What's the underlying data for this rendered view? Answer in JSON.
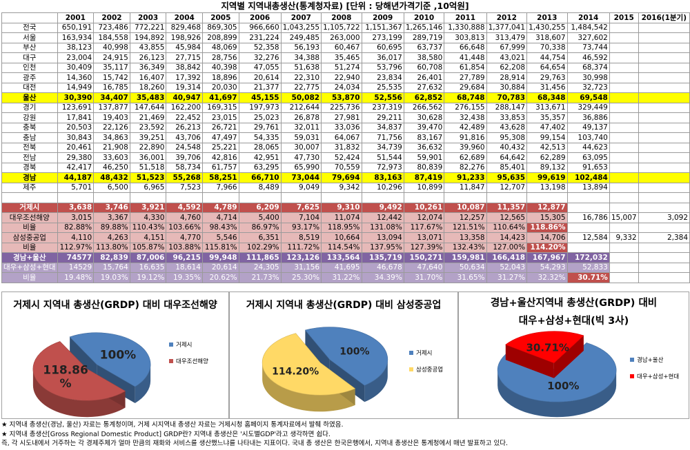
{
  "title": "지역별 지역내총생산(통계청자료) [단위 : 당해년가격기준 ,10억원]",
  "headers": [
    "",
    "2001",
    "2002",
    "2003",
    "2004",
    "2005",
    "2006",
    "2007",
    "2008",
    "2009",
    "2010",
    "2011",
    "2012",
    "2013",
    "2014",
    "2015",
    "2016(1분기)"
  ],
  "rows": [
    {
      "style": "",
      "label": "전국",
      "cells": [
        "650,191",
        "723,486",
        "772,221",
        "829,468",
        "869,305",
        "966,660",
        "1,043,255",
        "1,105,722",
        "1,151,367",
        "1,265,146",
        "1,330,888",
        "1,377,041",
        "1,430,255",
        "1,484,542",
        "",
        ""
      ]
    },
    {
      "style": "",
      "label": "서울",
      "cells": [
        "163,934",
        "184,558",
        "194,892",
        "198,926",
        "208,899",
        "231,224",
        "249,485",
        "263,000",
        "273,199",
        "289,719",
        "303,813",
        "313,479",
        "318,607",
        "327,602",
        "",
        ""
      ]
    },
    {
      "style": "",
      "label": "부산",
      "cells": [
        "38,123",
        "40,998",
        "43,855",
        "45,984",
        "48,069",
        "52,358",
        "56,193",
        "60,467",
        "60,695",
        "63,737",
        "66,648",
        "67,999",
        "70,338",
        "73,744",
        "",
        ""
      ]
    },
    {
      "style": "",
      "label": "대구",
      "cells": [
        "23,004",
        "24,915",
        "26,123",
        "27,715",
        "28,756",
        "32,276",
        "34,388",
        "35,465",
        "36,017",
        "38,580",
        "41,448",
        "43,021",
        "44,754",
        "46,592",
        "",
        ""
      ]
    },
    {
      "style": "",
      "label": "인천",
      "cells": [
        "30,409",
        "35,117",
        "36,349",
        "38,842",
        "40,398",
        "47,055",
        "51,638",
        "51,274",
        "53,796",
        "60,708",
        "61,854",
        "62,208",
        "64,654",
        "68,374",
        "",
        ""
      ]
    },
    {
      "style": "",
      "label": "광주",
      "cells": [
        "14,360",
        "15,742",
        "16,407",
        "17,392",
        "18,896",
        "20,614",
        "22,310",
        "22,940",
        "23,834",
        "26,401",
        "27,789",
        "28,914",
        "29,763",
        "30,998",
        "",
        ""
      ]
    },
    {
      "style": "",
      "label": "대전",
      "cells": [
        "14,949",
        "16,785",
        "18,260",
        "19,314",
        "20,030",
        "21,377",
        "22,775",
        "24,034",
        "25,535",
        "27,632",
        "29,684",
        "30,884",
        "31,456",
        "32,723",
        "",
        ""
      ]
    },
    {
      "style": "hl",
      "label": "울산",
      "cells": [
        "30,390",
        "34,407",
        "35,483",
        "40,947",
        "41,697",
        "45,155",
        "50,082",
        "53,870",
        "52,556",
        "62,852",
        "68,748",
        "70,783",
        "68,348",
        "69,548",
        "",
        ""
      ]
    },
    {
      "style": "",
      "label": "경기",
      "cells": [
        "123,691",
        "137,877",
        "147,644",
        "162,200",
        "169,315",
        "197,973",
        "212,644",
        "225,736",
        "237,319",
        "266,562",
        "276,155",
        "288,147",
        "313,671",
        "329,449",
        "",
        ""
      ]
    },
    {
      "style": "",
      "label": "강원",
      "cells": [
        "17,841",
        "19,403",
        "21,469",
        "22,452",
        "23,015",
        "25,023",
        "26,878",
        "27,981",
        "29,211",
        "30,628",
        "32,438",
        "33,853",
        "35,357",
        "36,886",
        "",
        ""
      ]
    },
    {
      "style": "",
      "label": "충북",
      "cells": [
        "20,503",
        "22,126",
        "23,592",
        "26,213",
        "26,721",
        "29,761",
        "32,011",
        "33,036",
        "34,837",
        "39,470",
        "42,489",
        "43,628",
        "47,402",
        "49,137",
        "",
        ""
      ]
    },
    {
      "style": "",
      "label": "충남",
      "cells": [
        "30,843",
        "34,863",
        "39,251",
        "43,706",
        "47,497",
        "54,335",
        "59,031",
        "64,067",
        "71,756",
        "83,167",
        "91,816",
        "95,308",
        "99,154",
        "103,740",
        "",
        ""
      ]
    },
    {
      "style": "",
      "label": "전북",
      "cells": [
        "20,461",
        "21,908",
        "22,890",
        "24,548",
        "25,221",
        "28,065",
        "30,007",
        "31,832",
        "34,739",
        "36,632",
        "39,960",
        "40,432",
        "42,513",
        "44,623",
        "",
        ""
      ]
    },
    {
      "style": "",
      "label": "전남",
      "cells": [
        "29,380",
        "33,603",
        "36,001",
        "39,706",
        "42,816",
        "42,951",
        "47,730",
        "52,424",
        "51,544",
        "59,901",
        "62,689",
        "64,642",
        "62,289",
        "63,095",
        "",
        ""
      ]
    },
    {
      "style": "",
      "label": "경북",
      "cells": [
        "42,417",
        "46,250",
        "51,518",
        "58,734",
        "61,757",
        "63,295",
        "65,990",
        "70,559",
        "72,973",
        "80,839",
        "82,276",
        "85,401",
        "89,132",
        "91,653",
        "",
        ""
      ]
    },
    {
      "style": "hl",
      "label": "경남",
      "cells": [
        "44,187",
        "48,432",
        "51,523",
        "55,268",
        "58,251",
        "66,710",
        "73,044",
        "79,694",
        "83,163",
        "87,419",
        "91,233",
        "95,635",
        "99,619",
        "102,484",
        "",
        ""
      ]
    },
    {
      "style": "",
      "label": "제주",
      "cells": [
        "5,701",
        "6,500",
        "6,965",
        "7,523",
        "7,966",
        "8,489",
        "9,049",
        "9,342",
        "10,296",
        "10,899",
        "11,847",
        "12,707",
        "13,198",
        "13,894",
        "",
        ""
      ]
    },
    {
      "style": "gap",
      "label": "",
      "cells": [
        "",
        "",
        "",
        "",
        "",
        "",
        "",
        "",
        "",
        "",
        "",
        "",
        "",
        "",
        "",
        ""
      ]
    },
    {
      "style": "red",
      "label": "거제시",
      "cells": [
        "3,638",
        "3,746",
        "3,921",
        "4,592",
        "4,789",
        "6,209",
        "7,625",
        "9,310",
        "9,492",
        "10,261",
        "10,087",
        "11,357",
        "12,877",
        "",
        "",
        ""
      ]
    },
    {
      "style": "pink",
      "label": "대우조선해양",
      "cells": [
        "3,015",
        "3,367",
        "4,330",
        "4,760",
        "4,714",
        "5,400",
        "7,104",
        "11,074",
        "12,442",
        "12,074",
        "12,257",
        "12,565",
        "15,305",
        "16,786",
        "15,007",
        "3,092"
      ]
    },
    {
      "style": "pink",
      "label": "비율",
      "cells": [
        "82.88%",
        "89.88%",
        "110.43%",
        "103.66%",
        "98.43%",
        "86.97%",
        "93.17%",
        "118.95%",
        "131.08%",
        "117.67%",
        "121.51%",
        "110.64%",
        "118.86%",
        "",
        "",
        ""
      ]
    },
    {
      "style": "pink",
      "label": "삼성중공업",
      "cells": [
        "4,110",
        "4,263",
        "4,151",
        "4,770",
        "5,546",
        "6,351",
        "8,519",
        "10,664",
        "13,094",
        "13,071",
        "13,358",
        "14,423",
        "14,706",
        "12,584",
        "9,332",
        "2,384"
      ]
    },
    {
      "style": "pink",
      "label": "비율",
      "cells": [
        "112.97%",
        "113.80%",
        "105.87%",
        "103.88%",
        "115.81%",
        "102.29%",
        "111.72%",
        "114.54%",
        "137.95%",
        "127.39%",
        "132.43%",
        "127.00%",
        "114.20%",
        "",
        "",
        ""
      ]
    },
    {
      "style": "purple",
      "label": "경남+울산",
      "cells": [
        "74577",
        "82,839",
        "87,006",
        "96,215",
        "99,948",
        "111,865",
        "123,126",
        "133,564",
        "135,719",
        "150,271",
        "159,981",
        "166,418",
        "167,967",
        "172,032",
        "",
        ""
      ]
    },
    {
      "style": "lav",
      "label": "대우+삼성+현대",
      "cells": [
        "14529",
        "15,764",
        "16,635",
        "18,614",
        "20,614",
        "24,305",
        "31,156",
        "41,695",
        "46,678",
        "47,640",
        "50,634",
        "52,043",
        "54,293",
        "52,833",
        "",
        ""
      ]
    },
    {
      "style": "lav",
      "label": "비율",
      "cells": [
        "19.48%",
        "19.03%",
        "19.12%",
        "19.35%",
        "20.62%",
        "21.73%",
        "25.30%",
        "31.22%",
        "34.39%",
        "31.70%",
        "31.65%",
        "31.27%",
        "32.32%",
        "30.71%",
        "",
        ""
      ]
    }
  ],
  "chart_data": [
    {
      "type": "pie",
      "title": "거제시 지역내 총생산(GRDP) 대비 대우조선해양",
      "labels": [
        "거제시",
        "대우조선해양"
      ],
      "data_labels": [
        "100%",
        "118.86 %"
      ],
      "values": [
        100,
        118.86
      ],
      "colors": [
        "#4f81bd",
        "#c0504d"
      ]
    },
    {
      "type": "pie",
      "title": "거제시 지역내 총생산(GRDP) 대비 삼성중공업",
      "labels": [
        "거제시",
        "삼성중공업"
      ],
      "data_labels": [
        "100%",
        "114.20%"
      ],
      "values": [
        100,
        114.2
      ],
      "colors": [
        "#4f81bd",
        "#ffd966"
      ]
    },
    {
      "type": "pie",
      "title": "경남+울산지역내 총생산(GRDP) 대비 대우+삼성+현대(빅 3사)",
      "title_line1": "경남+울산지역내 총생산(GRDP) 대비",
      "title_line2": "대우+삼성+현대(빅 3사)",
      "labels": [
        "경남+울산",
        "대우+삼성+현대"
      ],
      "data_labels": [
        "100%",
        "30.71%"
      ],
      "values": [
        100,
        30.71
      ],
      "colors": [
        "#4f81bd",
        "#ff0000"
      ]
    }
  ],
  "notes": [
    "★ 지역내 총생산(경남, 울산) 자료는 통계청이며, 거제 시지역내 총생산 자료는 거제시청 홈페이지 통계자료에서 발췌 하였음.",
    "★ 지역내 총생산[Gross Regional Domestic Product] GRDP란? 지역내 총생산은 '시도별GDP'라고 생각하면 쉽다.",
    "즉, 각 시도내에서 거주하는 각 경제주체가 얼마 만큼의 재화와 서비스를 생산했느냐를 나타내는 지표이다. 국내 총 생산은 한국은행에서, 지역내 총생산은 통계청에서 매년 발표하고 있다."
  ]
}
